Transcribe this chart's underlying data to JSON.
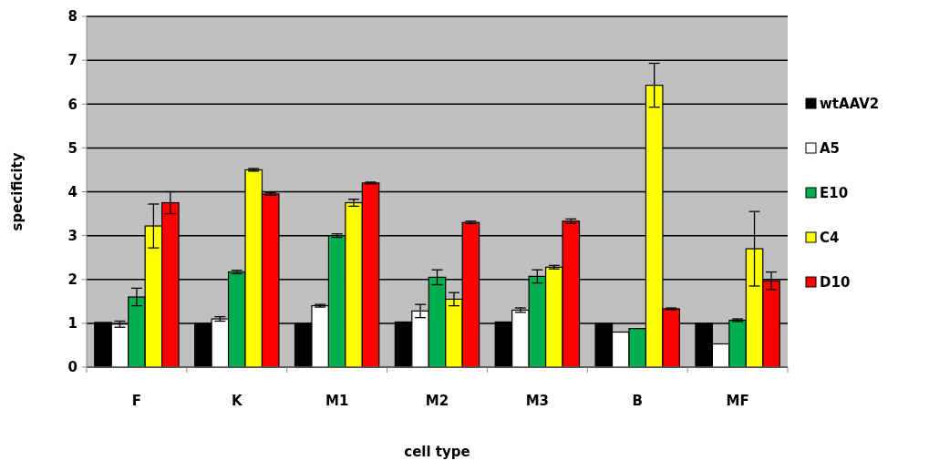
{
  "chart_data": {
    "type": "bar",
    "xlabel": "cell type",
    "ylabel": "specificity",
    "categories": [
      "F",
      "K",
      "M1",
      "M2",
      "M3",
      "B",
      "MF"
    ],
    "series": [
      {
        "name": "wtAAV2",
        "color": "#000000",
        "values": [
          1.02,
          1.0,
          1.0,
          1.03,
          1.03,
          1.0,
          1.0
        ]
      },
      {
        "name": "A5",
        "color": "#ffffff",
        "values": [
          0.98,
          1.1,
          1.4,
          1.28,
          1.3,
          0.8,
          0.53
        ],
        "errors": [
          0.07,
          0.05,
          0.03,
          0.15,
          0.05,
          null,
          null
        ]
      },
      {
        "name": "E10",
        "color": "#00b050",
        "values": [
          1.6,
          2.17,
          3.0,
          2.05,
          2.07,
          0.88,
          1.07
        ],
        "errors": [
          0.2,
          0.04,
          0.04,
          0.17,
          0.15,
          null,
          0.03
        ]
      },
      {
        "name": "C4",
        "color": "#ffff00",
        "values": [
          3.22,
          4.5,
          3.75,
          1.55,
          2.28,
          6.43,
          2.7
        ],
        "errors": [
          0.5,
          0.03,
          0.08,
          0.15,
          0.04,
          0.5,
          0.85
        ]
      },
      {
        "name": "D10",
        "color": "#ff0000",
        "values": [
          3.75,
          3.95,
          4.2,
          3.3,
          3.33,
          1.33,
          1.97
        ],
        "errors": [
          0.25,
          0.03,
          0.02,
          0.03,
          0.05,
          0.02,
          0.2
        ]
      }
    ],
    "ylim": [
      0,
      8
    ],
    "yticks": [
      0,
      1,
      2,
      3,
      4,
      5,
      6,
      7,
      8
    ],
    "grid": "y",
    "legend": "right"
  }
}
